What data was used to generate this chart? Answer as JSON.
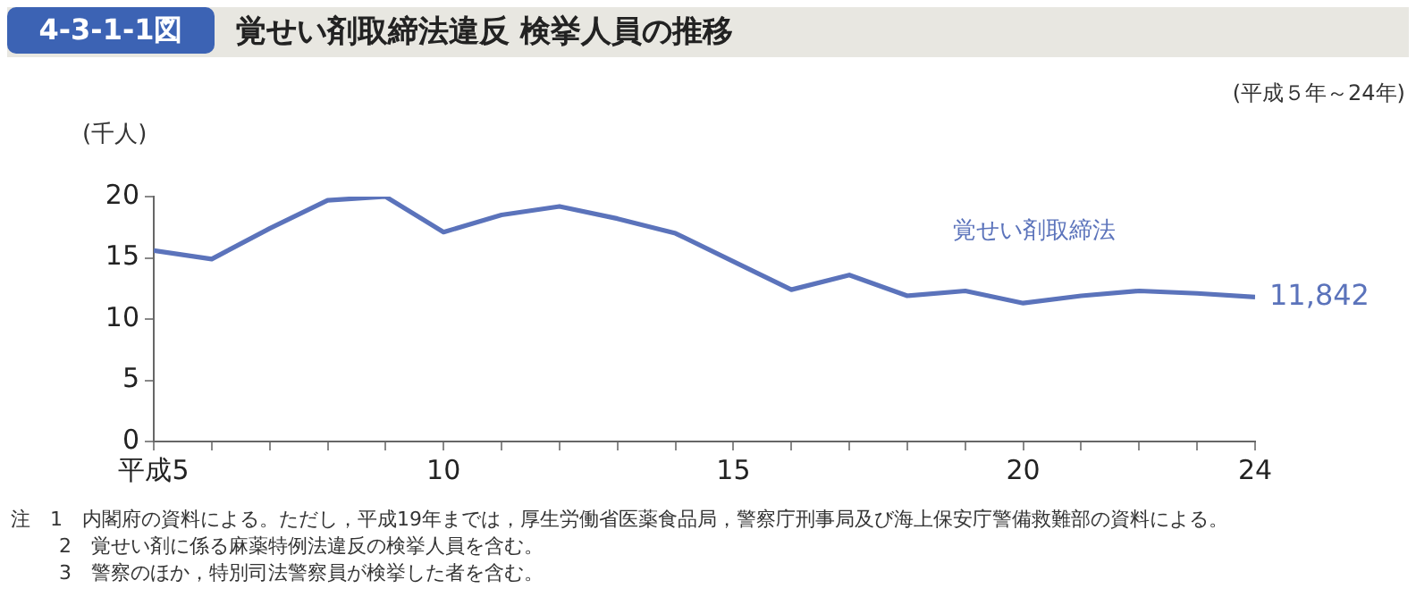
{
  "chart_data": {
    "type": "line",
    "title": "覚せい剤取締法違反 検挙人員の推移",
    "subtitle": "(平成５年～24年)",
    "ylabel": "(千人)",
    "annotations": [
      "4-3-1-1図",
      "注　1　内閣府の資料による。ただし，平成19年までは，厚生労働省医薬食品局，警察庁刑事局及び海上保安庁警備救難部の資料による。",
      "2　覚せい剤に係る麻薬特例法違反の検挙人員を含む。",
      "3　警察のほか，特別司法警察員が検挙した者を含む。",
      {
        "text": "11,842",
        "x": 24,
        "y": 11.8
      }
    ],
    "x": [
      5,
      6,
      7,
      8,
      9,
      10,
      11,
      12,
      13,
      14,
      15,
      16,
      17,
      18,
      19,
      20,
      21,
      22,
      23,
      24
    ],
    "series": [
      {
        "name": "覚せい剤取締法",
        "color": "#5b73bb",
        "values": [
          15.6,
          14.9,
          17.4,
          19.7,
          20.0,
          17.1,
          18.5,
          19.2,
          18.2,
          17.0,
          14.7,
          12.4,
          13.6,
          11.9,
          12.3,
          11.3,
          11.9,
          12.3,
          12.1,
          11.8
        ]
      }
    ],
    "xlim": [
      5,
      24
    ],
    "xticks": [
      {
        "value": 5,
        "label": "平成5"
      },
      {
        "value": 6,
        "label": null
      },
      {
        "value": 7,
        "label": null
      },
      {
        "value": 8,
        "label": null
      },
      {
        "value": 9,
        "label": null
      },
      10,
      {
        "value": 11,
        "label": null
      },
      {
        "value": 12,
        "label": null
      },
      {
        "value": 13,
        "label": null
      },
      {
        "value": 14,
        "label": null
      },
      15,
      {
        "value": 16,
        "label": null
      },
      {
        "value": 17,
        "label": null
      },
      {
        "value": 18,
        "label": null
      },
      {
        "value": 19,
        "label": null
      },
      20,
      {
        "value": 21,
        "label": null
      },
      {
        "value": 22,
        "label": null
      },
      {
        "value": 23,
        "label": null
      },
      24
    ],
    "ylim": [
      0,
      20
    ],
    "yticks": [
      0,
      5,
      10,
      15,
      20
    ],
    "grid": false,
    "legend": false,
    "marker": "none",
    "line_style": "solid"
  }
}
